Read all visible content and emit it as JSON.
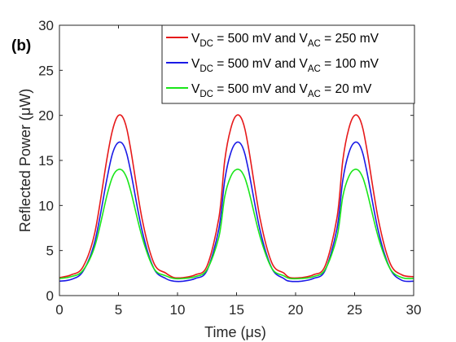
{
  "chart_data": {
    "type": "line",
    "panel_label": "(b)",
    "xlabel": "Time (μs)",
    "ylabel": "Reflected Power (μW)",
    "xlim": [
      0,
      30
    ],
    "ylim": [
      0,
      30
    ],
    "xticks": [
      "0",
      "5",
      "10",
      "15",
      "20",
      "25",
      "30"
    ],
    "yticks": [
      "0",
      "5",
      "10",
      "15",
      "20",
      "25",
      "30"
    ],
    "grid": false,
    "legend_position": "top-right",
    "series": [
      {
        "name": "V_DC = 500 mV and V_AC = 250 mV",
        "legend": {
          "p1": "V",
          "s1": "DC",
          "p2": " = 500 mV and V",
          "s2": "AC",
          "p3": " = 250 mV"
        },
        "color": "#e6191a",
        "baseline": 2.0,
        "peak": 20.0,
        "x": [
          0,
          1,
          2,
          3,
          4,
          4.5,
          5,
          5.5,
          6,
          7,
          8,
          9,
          9.7,
          10.5,
          11.5,
          12.5,
          13.5,
          14,
          14.5,
          15,
          15.5,
          16,
          17,
          18,
          19,
          19.5,
          20.5,
          21.5,
          22.5,
          23.5,
          24,
          24.5,
          25,
          25.5,
          26,
          27,
          28,
          29,
          30
        ],
        "y": [
          2.0,
          2.3,
          3.2,
          7.0,
          15.0,
          18.4,
          20.0,
          19.4,
          16.5,
          8.5,
          3.6,
          2.5,
          2.0,
          2.0,
          2.3,
          3.3,
          8.6,
          15.0,
          18.5,
          20.0,
          19.4,
          16.5,
          8.5,
          3.6,
          2.5,
          2.0,
          2.0,
          2.3,
          3.3,
          8.6,
          15.0,
          18.5,
          20.0,
          19.4,
          16.5,
          8.5,
          3.6,
          2.3,
          2.1
        ]
      },
      {
        "name": "V_DC = 500 mV and V_AC = 100 mV",
        "legend": {
          "p1": "V",
          "s1": "DC",
          "p2": " = 500 mV and V",
          "s2": "AC",
          "p3": " = 100 mV"
        },
        "color": "#1a1ae6",
        "baseline": 1.7,
        "peak": 17.0,
        "x": [
          0,
          1,
          2,
          3,
          4,
          4.5,
          5,
          5.5,
          6,
          7,
          8,
          9,
          9.7,
          10.5,
          11.5,
          12.5,
          13.5,
          14,
          14.5,
          15,
          15.5,
          16,
          17,
          18,
          19,
          19.5,
          20.5,
          21.5,
          22.5,
          23.5,
          24,
          24.5,
          25,
          25.5,
          26,
          27,
          28,
          29,
          30
        ],
        "y": [
          1.6,
          1.8,
          2.7,
          6.0,
          12.8,
          15.8,
          17.0,
          16.5,
          14.0,
          7.2,
          3.0,
          1.9,
          1.6,
          1.6,
          1.9,
          2.8,
          7.4,
          12.8,
          15.8,
          17.0,
          16.5,
          14.0,
          7.2,
          3.0,
          1.9,
          1.6,
          1.6,
          1.9,
          2.8,
          7.4,
          12.8,
          15.8,
          17.0,
          16.5,
          14.0,
          7.2,
          3.0,
          1.7,
          1.6
        ]
      },
      {
        "name": "V_DC = 500 mV and V_AC = 20 mV",
        "legend": {
          "p1": "V",
          "s1": "DC",
          "p2": " = 500 mV and V",
          "s2": "AC",
          "p3": " = 20 mV"
        },
        "color": "#19e619",
        "baseline": 2.0,
        "peak": 14.0,
        "x": [
          0,
          1,
          2,
          3,
          4,
          4.5,
          5,
          5.5,
          6,
          7,
          8,
          9,
          9.7,
          10.5,
          11.5,
          12.5,
          13.5,
          14,
          14.5,
          15,
          15.5,
          16,
          17,
          18,
          19,
          19.5,
          20.5,
          21.5,
          22.5,
          23.5,
          24,
          24.5,
          25,
          25.5,
          26,
          27,
          28,
          29,
          30
        ],
        "y": [
          1.9,
          2.1,
          2.8,
          5.5,
          11.0,
          13.2,
          14.0,
          13.6,
          11.8,
          6.5,
          3.0,
          2.2,
          1.9,
          1.9,
          2.1,
          2.9,
          6.5,
          11.0,
          13.2,
          14.0,
          13.6,
          11.8,
          6.5,
          3.0,
          2.2,
          1.9,
          1.9,
          2.1,
          2.9,
          6.5,
          11.0,
          13.2,
          14.0,
          13.6,
          11.8,
          6.5,
          3.0,
          2.0,
          1.9
        ]
      }
    ]
  }
}
